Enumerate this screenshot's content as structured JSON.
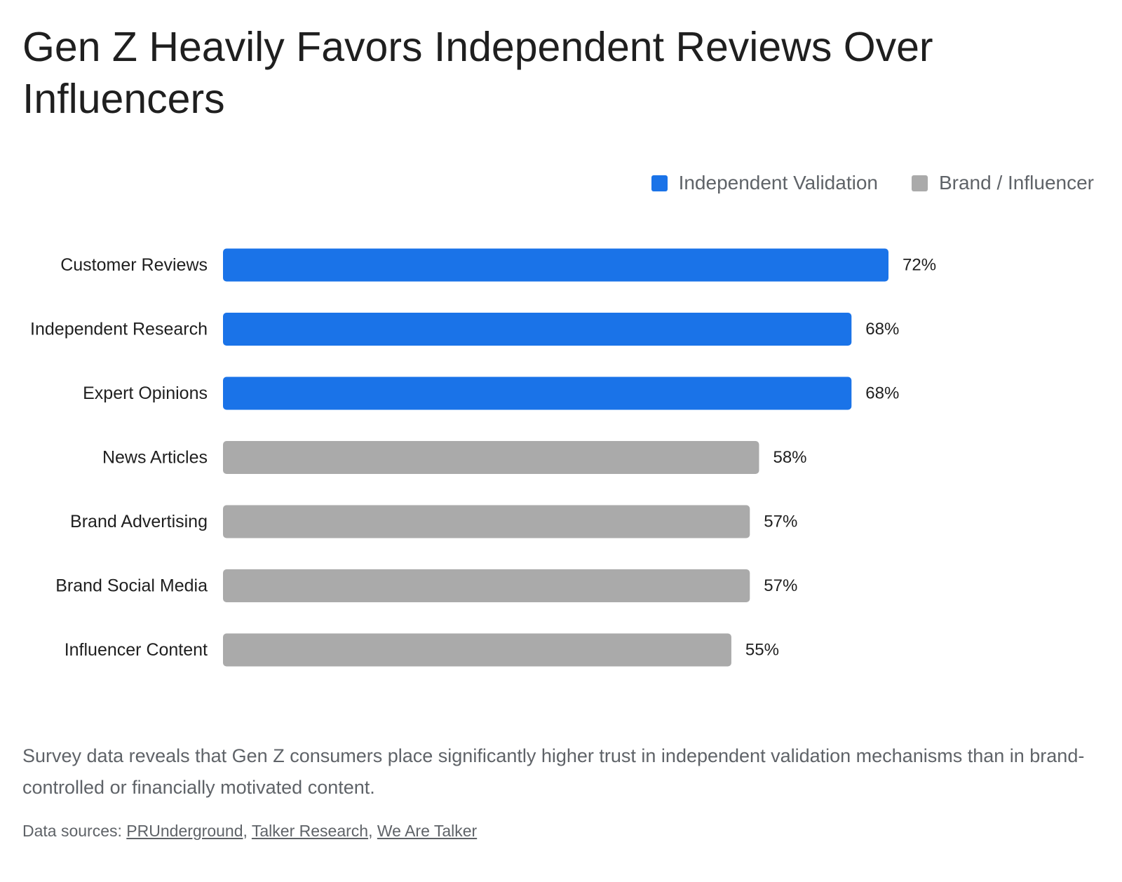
{
  "title": "Gen Z Heavily Favors Independent Reviews Over Influencers",
  "legend": [
    {
      "label": "Independent Validation",
      "color": "#1a73e8"
    },
    {
      "label": "Brand / Influencer",
      "color": "#aaaaaa"
    }
  ],
  "chart_data": {
    "type": "bar",
    "orientation": "horizontal",
    "title": "Gen Z Heavily Favors Independent Reviews Over Influencers",
    "categories": [
      "Customer Reviews",
      "Independent Research",
      "Expert Opinions",
      "News Articles",
      "Brand Advertising",
      "Brand Social Media",
      "Influencer Content"
    ],
    "values": [
      72,
      68,
      68,
      58,
      57,
      57,
      55
    ],
    "value_labels": [
      "72%",
      "68%",
      "68%",
      "58%",
      "57%",
      "57%",
      "55%"
    ],
    "groups": [
      "Independent Validation",
      "Independent Validation",
      "Independent Validation",
      "Brand / Influencer",
      "Brand / Influencer",
      "Brand / Influencer",
      "Brand / Influencer"
    ],
    "unit": "%",
    "xlim": [
      0,
      100
    ],
    "grid": false,
    "legend_position": "top-right"
  },
  "description": "Survey data reveals that Gen Z consumers place significantly higher trust in independent validation mechanisms than in brand-controlled or financially motivated content.",
  "sources": {
    "prefix": "Data sources: ",
    "links": [
      "PRUnderground",
      "Talker Research",
      "We Are Talker"
    ],
    "separator": ", "
  }
}
